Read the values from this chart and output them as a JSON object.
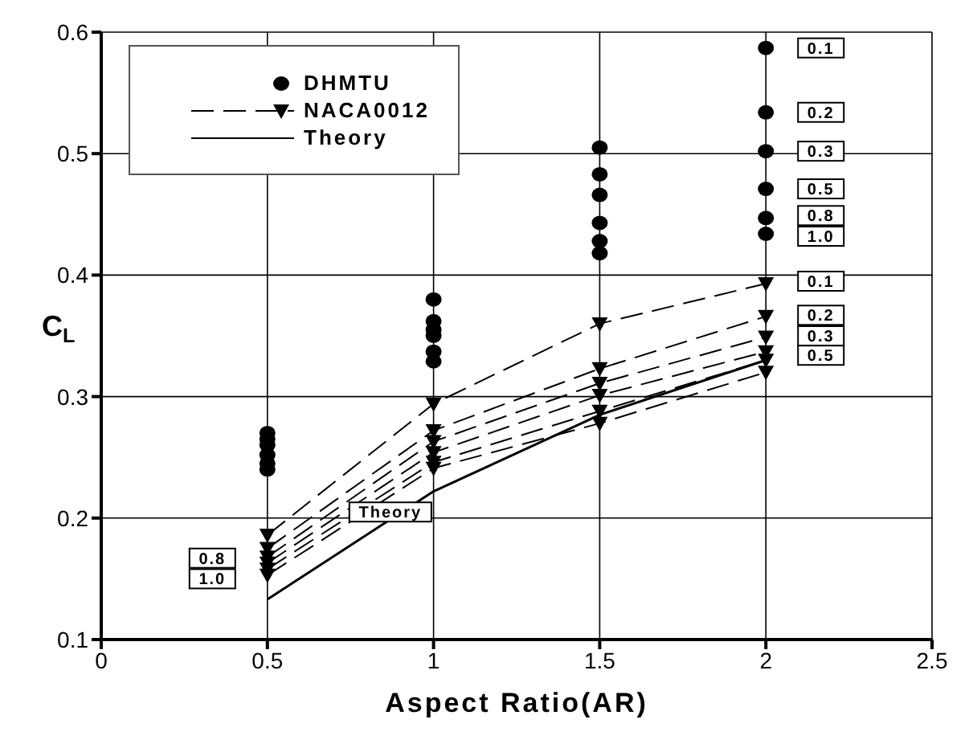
{
  "chart_data": {
    "type": "line",
    "xlabel": "Aspect Ratio(AR)",
    "ylabel": "C$_{L}$",
    "xlim": [
      0,
      2.5
    ],
    "xticks": [
      0,
      0.5,
      1,
      1.5,
      2,
      2.5
    ],
    "ylim": [
      0.1,
      0.6
    ],
    "yticks": [
      0.1,
      0.2,
      0.3,
      0.4,
      0.5,
      0.6
    ],
    "grid": true,
    "legend": "top left",
    "series": [
      {
        "name": "DHMTU",
        "type": "scatter",
        "marker": "circle",
        "color": "#000000",
        "x": [
          0.5,
          0.5,
          0.5,
          0.5,
          0.5,
          0.5,
          1,
          1,
          1,
          1,
          1,
          1,
          1.5,
          1.5,
          1.5,
          1.5,
          1.5,
          1.5,
          2,
          2,
          2,
          2,
          2,
          2
        ],
        "values": [
          0.27,
          0.265,
          0.26,
          0.252,
          0.245,
          0.24,
          0.38,
          0.362,
          0.355,
          0.35,
          0.337,
          0.329,
          0.505,
          0.483,
          0.466,
          0.443,
          0.428,
          0.418,
          0.587,
          0.534,
          0.502,
          0.471,
          0.447,
          0.434
        ]
      },
      {
        "name": "NACA0012",
        "type": "line",
        "marker": "triangle",
        "line_style": "dashed",
        "color": "#000000",
        "x": [
          0.5,
          1,
          1.5,
          2
        ],
        "values": [
          0.186,
          0.294,
          0.36,
          0.393
        ]
      },
      {
        "type": "line",
        "marker": "triangle",
        "line_style": "dashed",
        "color": "#000000",
        "x": [
          0.5,
          1,
          1.5,
          2
        ],
        "values": [
          0.175,
          0.272,
          0.323,
          0.366
        ]
      },
      {
        "type": "line",
        "marker": "triangle",
        "line_style": "dashed",
        "color": "#000000",
        "x": [
          0.5,
          1,
          1.5,
          2
        ],
        "values": [
          0.168,
          0.263,
          0.311,
          0.349
        ]
      },
      {
        "type": "line",
        "marker": "triangle",
        "line_style": "dashed",
        "color": "#000000",
        "x": [
          0.5,
          1,
          1.5,
          2
        ],
        "values": [
          0.163,
          0.254,
          0.301,
          0.337
        ]
      },
      {
        "type": "line",
        "marker": "triangle",
        "line_style": "dashed",
        "color": "#000000",
        "x": [
          0.5,
          1,
          1.5,
          2
        ],
        "values": [
          0.158,
          0.246,
          0.288,
          0.33
        ]
      },
      {
        "type": "line",
        "marker": "triangle",
        "line_style": "dashed",
        "color": "#000000",
        "x": [
          0.5,
          1,
          1.5,
          2
        ],
        "values": [
          0.153,
          0.241,
          0.278,
          0.32
        ]
      },
      {
        "name": "Theory",
        "type": "line",
        "marker": "none",
        "line_style": "solid",
        "color": "#000000",
        "x": [
          0.5,
          1,
          1.5,
          2
        ],
        "values": [
          0.133,
          0.222,
          0.285,
          0.33
        ]
      }
    ],
    "annotations": [
      {
        "text": "0.1",
        "x": 2,
        "y": 0.587
      },
      {
        "text": "0.2",
        "x": 2,
        "y": 0.534
      },
      {
        "text": "0.3",
        "x": 2,
        "y": 0.502
      },
      {
        "text": "0.5",
        "x": 2,
        "y": 0.471
      },
      {
        "text": "0.8",
        "x": 2,
        "y": 0.449
      },
      {
        "text": "1.0",
        "x": 2,
        "y": 0.432
      },
      {
        "text": "0.1",
        "x": 2,
        "y": 0.395
      },
      {
        "text": "0.2",
        "x": 2,
        "y": 0.367
      },
      {
        "text": "0.3",
        "x": 2,
        "y": 0.35
      },
      {
        "text": "0.5",
        "x": 2,
        "y": 0.334
      },
      {
        "text": "0.8",
        "x": 0.5,
        "y": 0.167
      },
      {
        "text": "1.0",
        "x": 0.5,
        "y": 0.15
      },
      {
        "text": "Theory",
        "x": 0.87,
        "y": 0.205
      }
    ]
  }
}
